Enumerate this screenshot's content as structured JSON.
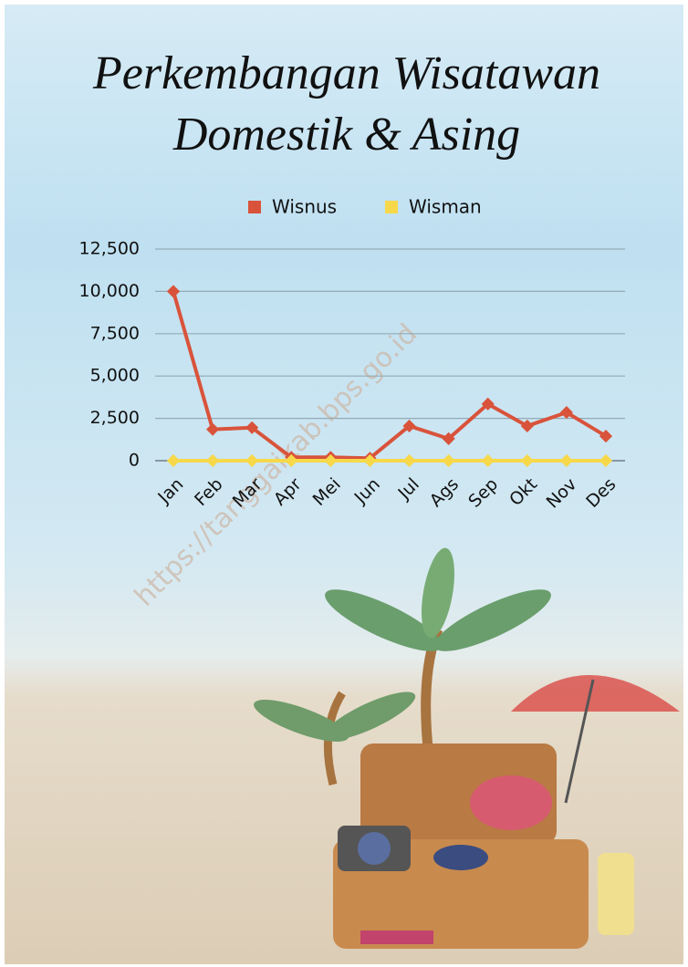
{
  "chart_data": {
    "type": "line",
    "title": [
      "Perkembangan Wisatawan",
      "Domestik & Asing"
    ],
    "categories": [
      "Jan",
      "Feb",
      "Mar",
      "Apr",
      "Mei",
      "Jun",
      "Jul",
      "Ags",
      "Sep",
      "Okt",
      "Nov",
      "Des"
    ],
    "series": [
      {
        "name": "Wisnus",
        "color": "#d9533b",
        "values": [
          10000,
          1850,
          1950,
          200,
          200,
          150,
          2050,
          1300,
          3350,
          2050,
          2850,
          1450
        ]
      },
      {
        "name": "Wisman",
        "color": "#f7d84a",
        "values": [
          0,
          0,
          0,
          0,
          0,
          0,
          0,
          0,
          0,
          0,
          0,
          0
        ]
      }
    ],
    "ylim": [
      0,
      12500
    ],
    "yticks": [
      0,
      {
        "value": 2500,
        "label": "2,500"
      },
      {
        "value": 5000,
        "label": "5,000"
      },
      {
        "value": 7500,
        "label": "7,500"
      },
      {
        "value": 10000,
        "label": "10,000"
      },
      {
        "value": 12500,
        "label": "12,500"
      }
    ],
    "grid": true,
    "legend": "top",
    "watermark": "https://tanggaikab.bps.go.id"
  }
}
